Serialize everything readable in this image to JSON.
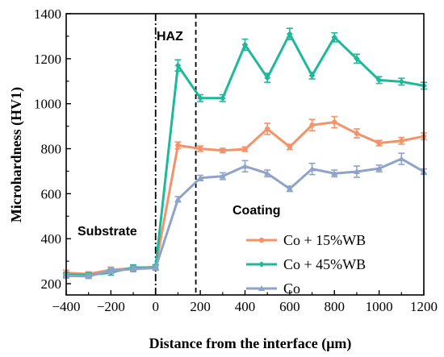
{
  "chart_data": {
    "type": "line",
    "xlabel": "Distance from the interface  (μm)",
    "ylabel": "Microhardness (HV1)",
    "xlim": [
      -400,
      1200
    ],
    "ylim": [
      150,
      1400
    ],
    "x_ticks": [
      "-400",
      "-200",
      "0",
      "200",
      "400",
      "600",
      "800",
      "1000",
      "1200"
    ],
    "y_ticks": [
      "200",
      "400",
      "600",
      "800",
      "1000",
      "1200",
      "1400"
    ],
    "grid": false,
    "legend_position": "bottom-right",
    "x": [
      -400,
      -300,
      -200,
      -100,
      0,
      100,
      200,
      300,
      400,
      500,
      600,
      700,
      800,
      900,
      1000,
      1100,
      1200
    ],
    "series": [
      {
        "name": "Co + 15%WB",
        "color": "#f4926a",
        "marker": "circle",
        "values": [
          248,
          243,
          262,
          268,
          275,
          815,
          800,
          792,
          798,
          888,
          808,
          905,
          918,
          868,
          825,
          835,
          855
        ],
        "errors": [
          12,
          10,
          12,
          12,
          10,
          15,
          12,
          10,
          10,
          25,
          12,
          25,
          25,
          20,
          12,
          15,
          15
        ]
      },
      {
        "name": "Co + 45%WB",
        "color": "#1db99a",
        "marker": "diamond",
        "values": [
          240,
          238,
          250,
          272,
          272,
          1170,
          1025,
          1025,
          1262,
          1115,
          1310,
          1125,
          1295,
          1200,
          1105,
          1098,
          1080
        ],
        "errors": [
          10,
          10,
          12,
          12,
          12,
          25,
          15,
          15,
          25,
          20,
          25,
          15,
          20,
          20,
          15,
          15,
          15
        ]
      },
      {
        "name": "Co",
        "color": "#8ea3cc",
        "marker": "triangle",
        "values": [
          235,
          233,
          258,
          265,
          270,
          575,
          670,
          678,
          722,
          690,
          622,
          710,
          690,
          698,
          712,
          755,
          698
        ],
        "errors": [
          10,
          10,
          12,
          12,
          10,
          12,
          12,
          15,
          25,
          15,
          12,
          25,
          15,
          25,
          15,
          25,
          12
        ]
      }
    ],
    "annotations": {
      "haz": "HAZ",
      "substrate": "Substrate",
      "coating": "Coating"
    },
    "boundaries": [
      0,
      180
    ]
  }
}
